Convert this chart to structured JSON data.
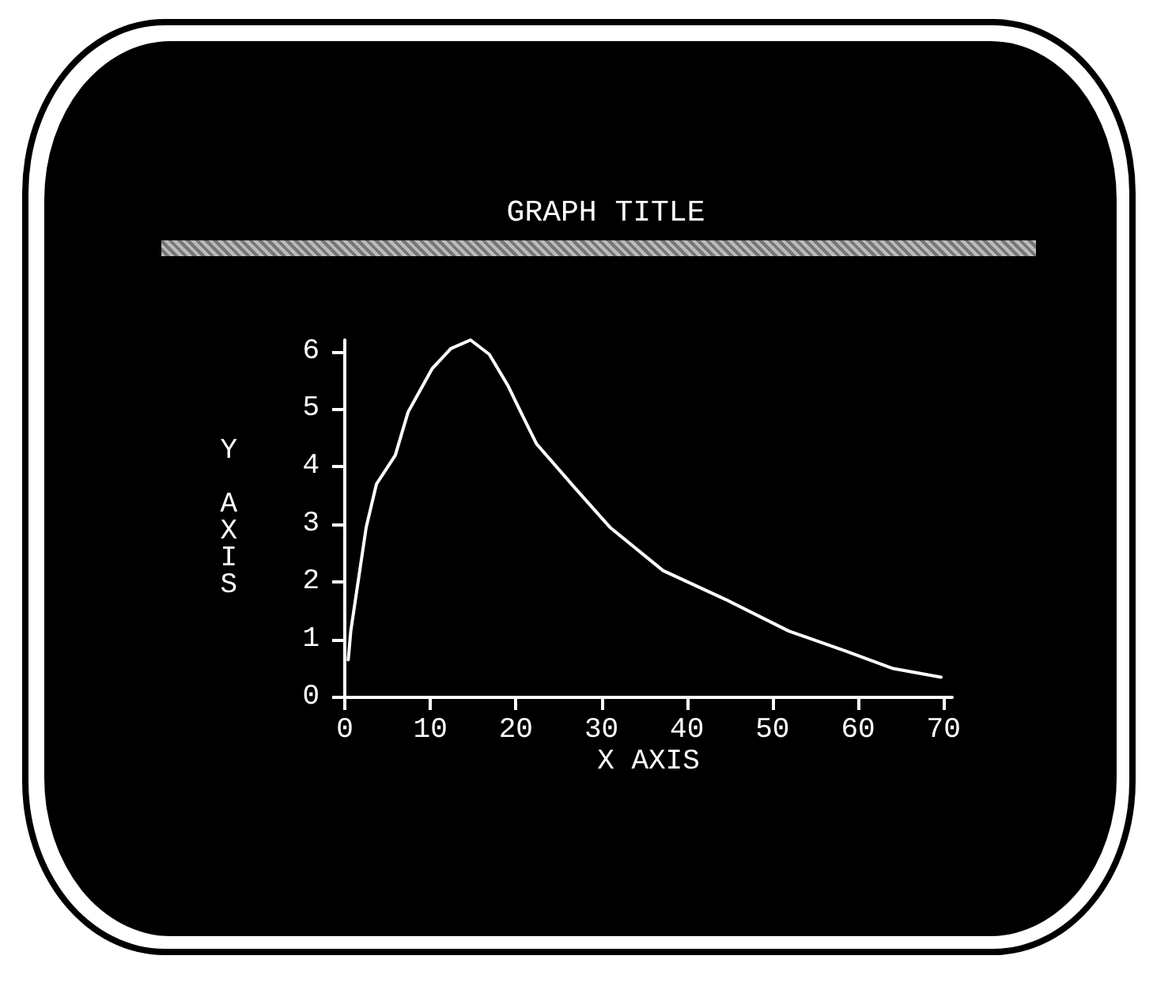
{
  "chart_data": {
    "type": "line",
    "title": "GRAPH TITLE",
    "xlabel": "X AXIS",
    "ylabel": "Y AXIS",
    "x": [
      0.4,
      0.7,
      1.6,
      2.5,
      3.7,
      5.9,
      7.4,
      10.2,
      12.4,
      14.7,
      16.9,
      19.1,
      20.9,
      22.4,
      26.8,
      29.8,
      31.0,
      37.2,
      44.5,
      51.9,
      58.6,
      64.1,
      69.7
    ],
    "series": [
      {
        "color": "#ffffff",
        "values": [
          0.65,
          1.15,
          2.05,
          2.95,
          3.7,
          4.2,
          4.95,
          5.7,
          6.05,
          6.2,
          5.95,
          5.4,
          4.85,
          4.4,
          3.65,
          3.15,
          2.95,
          2.2,
          1.7,
          1.15,
          0.8,
          0.5,
          0.35
        ]
      }
    ],
    "xlim": [
      0,
      71
    ],
    "ylim": [
      0,
      6.2
    ],
    "xticks": [
      0,
      10,
      20,
      30,
      40,
      50,
      60,
      70
    ],
    "yticks": [
      0,
      1,
      2,
      3,
      4,
      5,
      6
    ],
    "marker": "none",
    "line_style": "solid",
    "grid": false
  }
}
